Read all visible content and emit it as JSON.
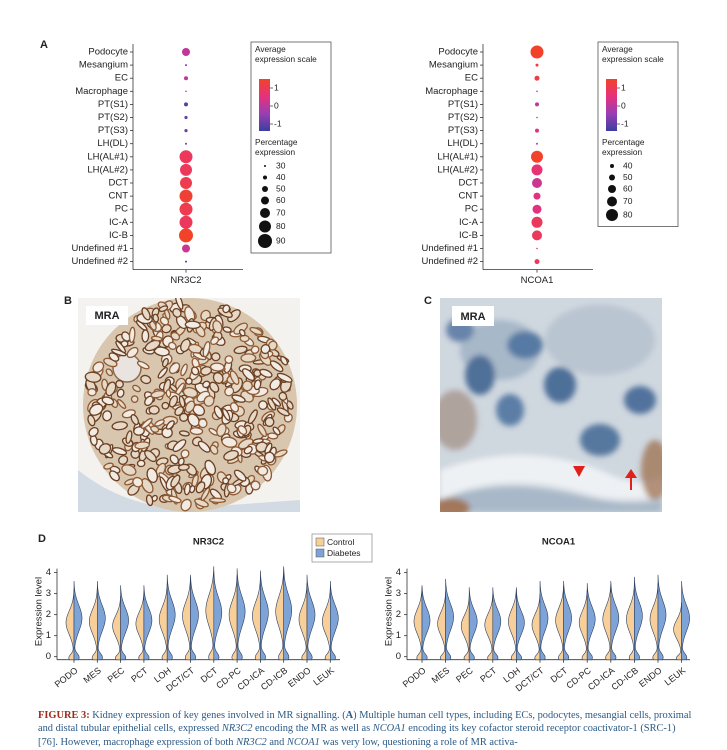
{
  "panel_labels": [
    "A",
    "B",
    "C",
    "D"
  ],
  "chart_data": [
    {
      "type": "dot",
      "xlabel": "NR3C2",
      "categories": [
        "Podocyte",
        "Mesangium",
        "EC",
        "Macrophage",
        "PT(S1)",
        "PT(S2)",
        "PT(S3)",
        "LH(DL)",
        "LH(AL#1)",
        "LH(AL#2)",
        "DCT",
        "CNT",
        "PC",
        "IC-A",
        "IC-B",
        "Undefined #1",
        "Undefined #2"
      ],
      "expression": [
        0,
        -0.5,
        0,
        -0.3,
        -0.8,
        -0.7,
        -0.6,
        -0.8,
        0.6,
        0.6,
        0.7,
        0.9,
        0.7,
        0.6,
        1,
        0.1,
        -0.9
      ],
      "percent": [
        60,
        30,
        40,
        28,
        40,
        36,
        36,
        30,
        85,
        80,
        80,
        85,
        85,
        85,
        90,
        60,
        30
      ],
      "color_legend": {
        "title": "Average expression scale",
        "ticks": [
          1,
          0,
          -1
        ],
        "range": [
          -1,
          1
        ],
        "colors": [
          "#3b3f9f",
          "#9a3eb4",
          "#e6317c",
          "#f2432a"
        ]
      },
      "size_legend": {
        "title": "Percentage expression",
        "values": [
          30,
          40,
          50,
          60,
          70,
          80,
          90
        ]
      }
    },
    {
      "type": "dot",
      "xlabel": "NCOA1",
      "categories": [
        "Podocyte",
        "Mesangium",
        "EC",
        "Macrophage",
        "PT(S1)",
        "PT(S2)",
        "PT(S3)",
        "LH(DL)",
        "LH(AL#1)",
        "LH(AL#2)",
        "DCT",
        "CNT",
        "PC",
        "IC-A",
        "IC-B",
        "Undefined #1",
        "Undefined #2"
      ],
      "expression": [
        1,
        0.8,
        0.8,
        0,
        0,
        -0.3,
        0.3,
        0,
        1,
        0.4,
        0.1,
        0.3,
        0.3,
        0.6,
        0.6,
        0.2,
        0.6
      ],
      "percent": [
        85,
        35,
        45,
        22,
        40,
        26,
        40,
        30,
        80,
        75,
        70,
        55,
        65,
        75,
        70,
        26,
        45
      ],
      "color_legend": {
        "title": "Average expression scale",
        "ticks": [
          1,
          0,
          -1
        ],
        "range": [
          -1,
          1
        ],
        "colors": [
          "#3b3f9f",
          "#9a3eb4",
          "#e6317c",
          "#f2432a"
        ]
      },
      "size_legend": {
        "title": "Percentage expression",
        "values": [
          40,
          50,
          60,
          70,
          80
        ]
      }
    },
    {
      "type": "violin",
      "title": "NR3C2",
      "ylabel": "Expression level",
      "categories": [
        "PODO",
        "MES",
        "PEC",
        "PCT",
        "LOH",
        "DCT/CT",
        "DCT",
        "CD-PC",
        "CD-ICA",
        "CD-ICB",
        "ENDO",
        "LEUK"
      ],
      "series": [
        {
          "name": "Control",
          "color": "#f8cf98",
          "values": [
            3.2,
            3.3,
            2.9,
            3.1,
            3.5,
            3.8,
            4.3,
            3.9,
            3.8,
            4.2,
            3.5,
            3.3
          ]
        },
        {
          "name": "Diabetes",
          "color": "#7ea3d6",
          "values": [
            3.6,
            3.6,
            3.4,
            3.4,
            3.9,
            3.9,
            4.1,
            4.2,
            4.1,
            4.3,
            3.9,
            3.6
          ]
        }
      ],
      "ylim": [
        -0.3,
        4.6
      ],
      "yticks": [
        0,
        1,
        2,
        3,
        4
      ],
      "legend": "top-right"
    },
    {
      "type": "violin",
      "title": "NCOA1",
      "ylabel": "Expression level",
      "categories": [
        "PODO",
        "MES",
        "PEC",
        "PCT",
        "LOH",
        "DCT/CT",
        "DCT",
        "CD-PC",
        "CD-ICA",
        "CD-ICB",
        "ENDO",
        "LEUK"
      ],
      "series": [
        {
          "name": "Control",
          "color": "#f8cf98",
          "values": [
            3.3,
            3.1,
            2.9,
            3.0,
            3.3,
            3.0,
            3.4,
            3.2,
            3.5,
            3.5,
            3.5,
            2.6
          ]
        },
        {
          "name": "Diabetes",
          "color": "#7ea3d6",
          "values": [
            3.4,
            3.7,
            3.3,
            3.3,
            3.2,
            3.6,
            3.6,
            3.5,
            3.6,
            3.8,
            3.9,
            3.6
          ]
        }
      ],
      "ylim": [
        -0.3,
        4.6
      ],
      "yticks": [
        0,
        1,
        2,
        3,
        4
      ]
    }
  ],
  "images": [
    {
      "label": "MRA"
    },
    {
      "label": "MRA"
    }
  ],
  "caption": {
    "segments": [
      "FIGURE 3:",
      " Kidney expression of key genes involved in MR signalling. (",
      "A",
      ") Multiple human cell types, including ECs, podocytes, mesangial cells, proximal and distal tubular epithelial cells, expressed ",
      "NR3C2",
      " encoding the MR as well as ",
      "NCOA1",
      " encoding its key cofactor steroid receptor coactivator-1 (SRC-1) [76]. However, macrophage expression of both ",
      "NR3C2",
      " and ",
      "NCOA1",
      " was very low, questioning a role of MR activa-"
    ]
  }
}
